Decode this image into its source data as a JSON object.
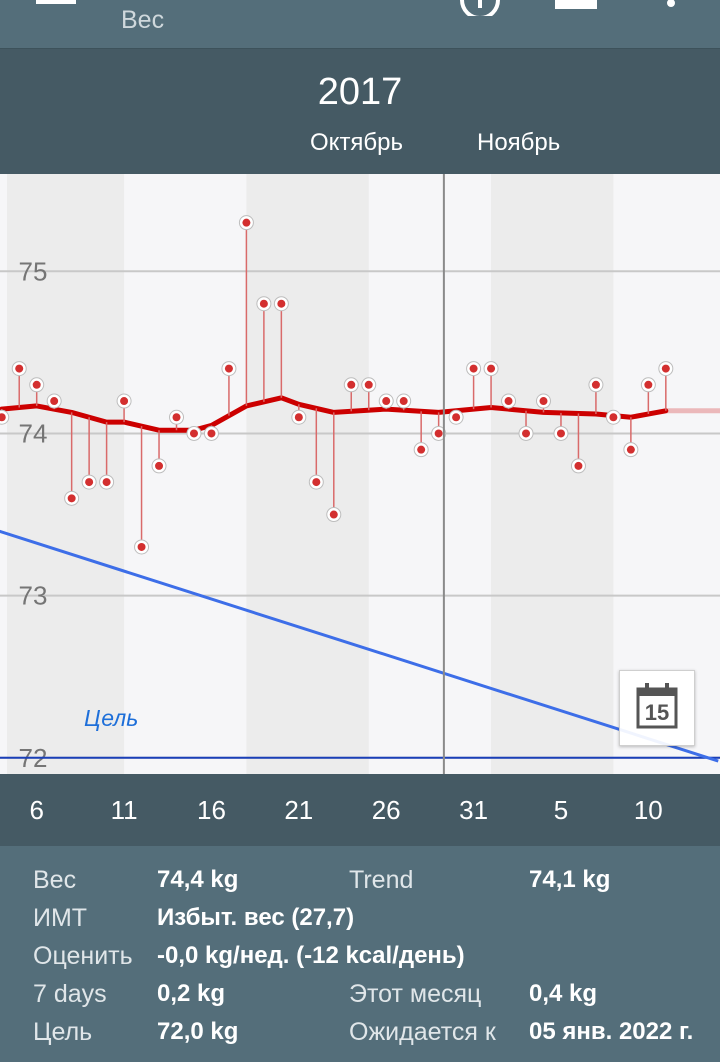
{
  "app": {
    "title": "Вес",
    "icons": [
      "menu-icon",
      "clock-icon",
      "calendar-view-icon",
      "more-vert-icon"
    ]
  },
  "header": {
    "year": "2017",
    "months": [
      "Октябрь",
      "Ноябрь"
    ]
  },
  "chart_data": {
    "type": "line",
    "y_ticks": [
      "75",
      "74",
      "73",
      "72"
    ],
    "ylim": [
      71.9,
      75.6
    ],
    "xlim": [
      3.9,
      45.1
    ],
    "x_tick_labels": [
      "6",
      "11",
      "16",
      "21",
      "26",
      "31",
      "5",
      "10",
      "15"
    ],
    "x_tick_days": [
      6,
      11,
      16,
      21,
      26,
      31,
      36,
      41,
      46
    ],
    "goal_label": "Цель",
    "goal_value": 72.0,
    "measurements": [
      {
        "day": 4,
        "value": 74.1
      },
      {
        "day": 5,
        "value": 74.4
      },
      {
        "day": 6,
        "value": 74.3
      },
      {
        "day": 7,
        "value": 74.2
      },
      {
        "day": 8,
        "value": 73.6
      },
      {
        "day": 9,
        "value": 73.7
      },
      {
        "day": 10,
        "value": 73.7
      },
      {
        "day": 11,
        "value": 74.2
      },
      {
        "day": 12,
        "value": 73.3
      },
      {
        "day": 13,
        "value": 73.8
      },
      {
        "day": 14,
        "value": 74.1
      },
      {
        "day": 15,
        "value": 74.0
      },
      {
        "day": 16,
        "value": 74.0
      },
      {
        "day": 17,
        "value": 74.4
      },
      {
        "day": 18,
        "value": 75.3
      },
      {
        "day": 19,
        "value": 74.8
      },
      {
        "day": 20,
        "value": 74.8
      },
      {
        "day": 21,
        "value": 74.1
      },
      {
        "day": 22,
        "value": 73.7
      },
      {
        "day": 23,
        "value": 73.5
      },
      {
        "day": 24,
        "value": 74.3
      },
      {
        "day": 25,
        "value": 74.3
      },
      {
        "day": 26,
        "value": 74.2
      },
      {
        "day": 27,
        "value": 74.2
      },
      {
        "day": 28,
        "value": 73.9
      },
      {
        "day": 29,
        "value": 74.0
      },
      {
        "day": 30,
        "value": 74.1
      },
      {
        "day": 31,
        "value": 74.4
      },
      {
        "day": 32,
        "value": 74.4
      },
      {
        "day": 33,
        "value": 74.2
      },
      {
        "day": 34,
        "value": 74.0
      },
      {
        "day": 35,
        "value": 74.2
      },
      {
        "day": 36,
        "value": 74.0
      },
      {
        "day": 37,
        "value": 73.8
      },
      {
        "day": 38,
        "value": 74.3
      },
      {
        "day": 39,
        "value": 74.1
      },
      {
        "day": 40,
        "value": 73.9
      },
      {
        "day": 41,
        "value": 74.3
      },
      {
        "day": 42,
        "value": 74.4
      }
    ],
    "faded_measurements": [
      {
        "day": 2,
        "value": 73.3
      },
      {
        "day": 3,
        "value": 74.1
      }
    ],
    "trend": [
      {
        "day": 4,
        "value": 74.15
      },
      {
        "day": 6,
        "value": 74.17
      },
      {
        "day": 8,
        "value": 74.13
      },
      {
        "day": 10,
        "value": 74.07
      },
      {
        "day": 11,
        "value": 74.07
      },
      {
        "day": 13,
        "value": 74.02
      },
      {
        "day": 15,
        "value": 74.02
      },
      {
        "day": 16,
        "value": 74.05
      },
      {
        "day": 18,
        "value": 74.17
      },
      {
        "day": 20,
        "value": 74.22
      },
      {
        "day": 21,
        "value": 74.18
      },
      {
        "day": 23,
        "value": 74.13
      },
      {
        "day": 26,
        "value": 74.15
      },
      {
        "day": 29,
        "value": 74.13
      },
      {
        "day": 32,
        "value": 74.16
      },
      {
        "day": 35,
        "value": 74.13
      },
      {
        "day": 38,
        "value": 74.12
      },
      {
        "day": 40,
        "value": 74.1
      },
      {
        "day": 42,
        "value": 74.14
      }
    ],
    "trend_faded_before": [
      {
        "day": 0,
        "value": 74.25
      },
      {
        "day": 2,
        "value": 74.15
      },
      {
        "day": 4,
        "value": 74.15
      }
    ],
    "trend_faded_after": [
      {
        "day": 42,
        "value": 74.14
      },
      {
        "day": 46,
        "value": 74.14
      }
    ],
    "projection": [
      {
        "day": 0,
        "value": 73.53
      },
      {
        "day": 45,
        "value": 71.98
      }
    ],
    "today_day": 29.3,
    "shaded_bands": [
      [
        4.3,
        11
      ],
      [
        18,
        25
      ],
      [
        32,
        39
      ]
    ],
    "colors": {
      "trend": "#cc0000",
      "measurement_fill": "#d32f2f",
      "stem": "#d96a6a",
      "projection": "#3d6ee8",
      "goal": "#1a3fb8",
      "grid": "#c8c8c8",
      "band": "#ececec",
      "unshaded": "#f6f6f8"
    }
  },
  "calendar_button": {
    "day": "15"
  },
  "stats": {
    "rows": [
      {
        "label": "Вес",
        "value": "74,4 kg",
        "label2": "Trend",
        "value2": "74,1 kg"
      },
      {
        "label": "ИМТ",
        "value": "Избыт. вес (27,7)",
        "label2": "",
        "value2": ""
      },
      {
        "label": "Оценить",
        "value": "-0,0 kg/нед. (-12 kcal/день)",
        "label2": "",
        "value2": ""
      },
      {
        "label": "7 days",
        "value": "0,2 kg",
        "label2": "Этот месяц",
        "value2": "0,4 kg"
      },
      {
        "label": "Цель",
        "value": "72,0 kg",
        "label2": "Ожидается к",
        "value2": "05 янв. 2022 г."
      }
    ]
  }
}
